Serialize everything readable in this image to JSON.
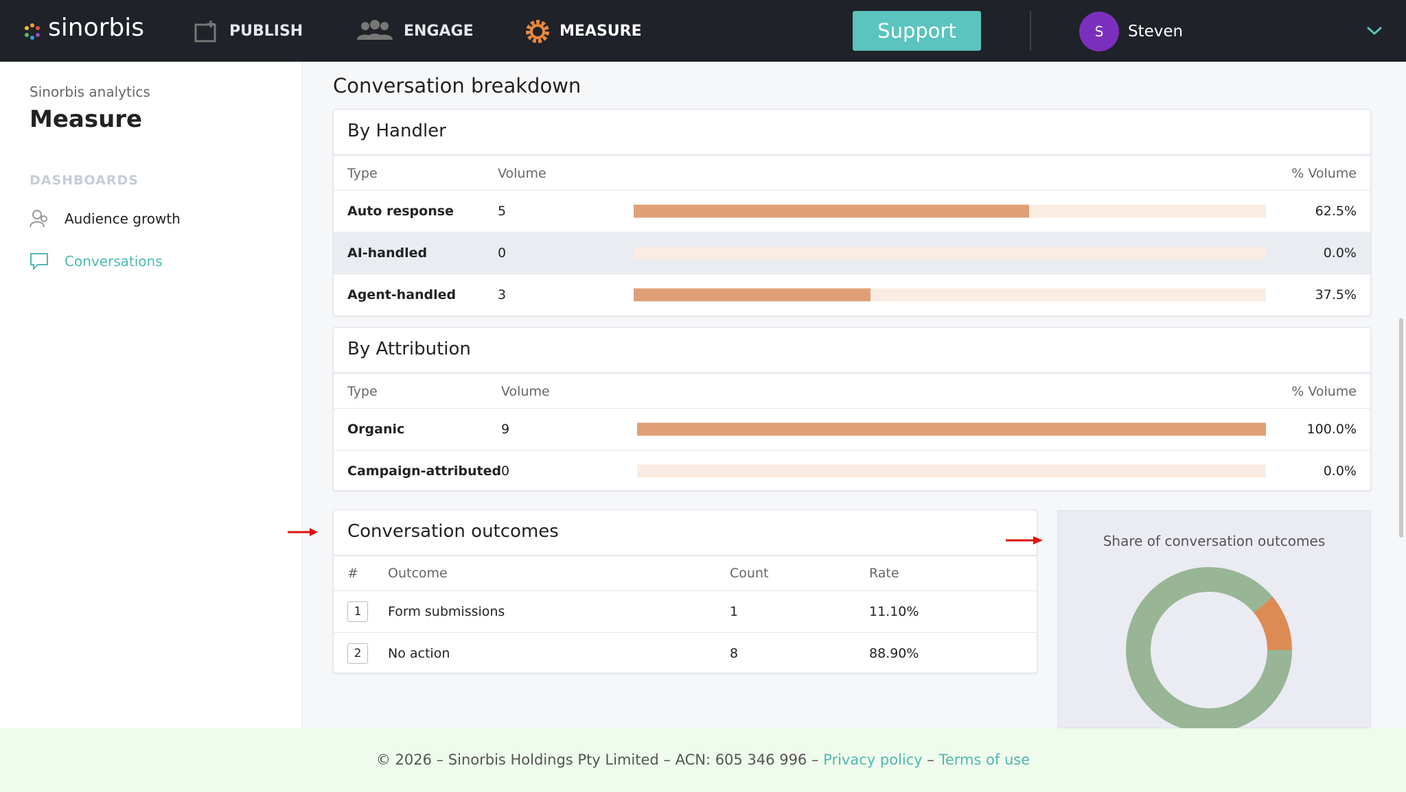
{
  "nav": {
    "brand": "sinorbis",
    "items": [
      "PUBLISH",
      "ENGAGE",
      "MEASURE"
    ],
    "support": "Support",
    "user_initial": "S",
    "user": "Steven"
  },
  "sidebar": {
    "subtitle": "Sinorbis analytics",
    "title": "Measure",
    "section": "DASHBOARDS",
    "links": [
      "Audience growth",
      "Conversations"
    ]
  },
  "main": {
    "heading": "Conversation breakdown",
    "by_handler": {
      "title": "By Handler",
      "columns": [
        "Type",
        "Volume",
        "% Volume"
      ],
      "rows": [
        {
          "type": "Auto response",
          "volume": 5,
          "percent": 62.5,
          "percent_label": "62.5%"
        },
        {
          "type": "AI-handled",
          "volume": 0,
          "percent": 0,
          "percent_label": "0.0%"
        },
        {
          "type": "Agent-handled",
          "volume": 3,
          "percent": 37.5,
          "percent_label": "37.5%"
        }
      ]
    },
    "by_attribution": {
      "title": "By Attribution",
      "columns": [
        "Type",
        "Volume",
        "% Volume"
      ],
      "rows": [
        {
          "type": "Organic",
          "volume": 9,
          "percent": 100,
          "percent_label": "100.0%"
        },
        {
          "type": "Campaign-attributed",
          "volume": 0,
          "percent": 0,
          "percent_label": "0.0%"
        }
      ]
    },
    "outcomes": {
      "title": "Conversation outcomes",
      "columns": [
        "#",
        "Outcome",
        "Count",
        "Rate"
      ],
      "rows": [
        {
          "index": 1,
          "outcome": "Form submissions",
          "count": 1,
          "rate": 11.1,
          "rate_label": "11.10%",
          "color": "#dc8b55"
        },
        {
          "index": 2,
          "outcome": "No action",
          "count": 8,
          "rate": 88.9,
          "rate_label": "88.90%",
          "color": "#98b596"
        }
      ]
    },
    "donut_title": "Share of conversation outcomes"
  },
  "footer": {
    "text": "© 2026 – Sinorbis Holdings Pty Limited – ACN: 605 346 996 –",
    "privacy": "Privacy policy",
    "separator": "–",
    "terms": "Terms of use"
  }
}
